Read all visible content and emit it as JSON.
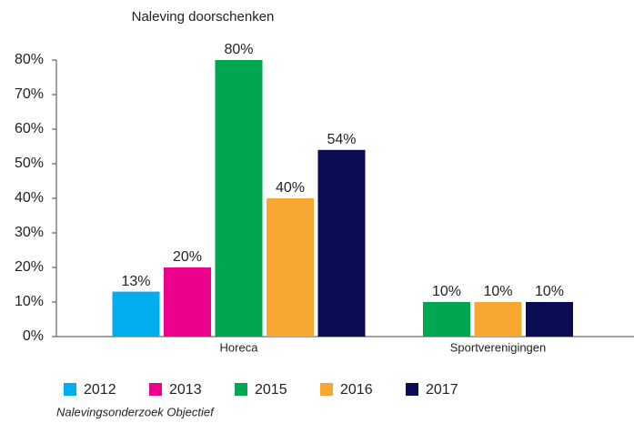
{
  "chart_data": {
    "type": "bar",
    "title": "Naleving doorschenken",
    "categories": [
      "Horeca",
      "Sportverenigingen"
    ],
    "series": [
      {
        "name": "2012",
        "color": "#00aeef",
        "values": [
          13,
          null
        ],
        "value_labels": [
          "13%",
          null
        ]
      },
      {
        "name": "2013",
        "color": "#ec008c",
        "values": [
          20,
          null
        ],
        "value_labels": [
          "20%",
          null
        ]
      },
      {
        "name": "2015",
        "color": "#00a651",
        "values": [
          80,
          10
        ],
        "value_labels": [
          "80%",
          "10%"
        ]
      },
      {
        "name": "2016",
        "color": "#f7a833",
        "values": [
          40,
          10
        ],
        "value_labels": [
          "40%",
          "10%"
        ]
      },
      {
        "name": "2017",
        "color": "#0b0d54",
        "values": [
          54,
          10
        ],
        "value_labels": [
          "54%",
          "10%"
        ]
      }
    ],
    "ylim": [
      0,
      80
    ],
    "yticks": [
      {
        "value": 0,
        "label": "0%"
      },
      {
        "value": 10,
        "label": "10%"
      },
      {
        "value": 20,
        "label": "20%"
      },
      {
        "value": 30,
        "label": "30%"
      },
      {
        "value": 40,
        "label": "40%"
      },
      {
        "value": 50,
        "label": "50%"
      },
      {
        "value": 60,
        "label": "60%"
      },
      {
        "value": 70,
        "label": "70%"
      },
      {
        "value": 80,
        "label": "80%"
      }
    ],
    "source": "Nalevingsonderzoek Objectief"
  }
}
